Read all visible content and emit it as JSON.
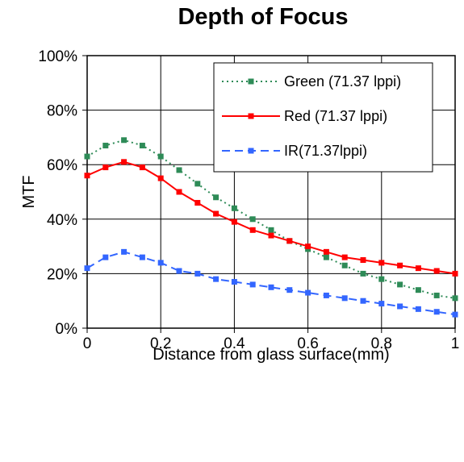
{
  "chart_data": {
    "type": "line",
    "title": "Depth of Focus",
    "xlabel": "Distance from glass surface(mm)",
    "ylabel": "MTF",
    "xlim": [
      0,
      1
    ],
    "ylim": [
      0,
      100
    ],
    "x_ticks": [
      "0",
      "0.2",
      "0.4",
      "0.6",
      "0.8",
      "1"
    ],
    "y_ticks": [
      "0%",
      "20%",
      "40%",
      "60%",
      "80%",
      "100%"
    ],
    "grid": true,
    "legend_position": "top-right",
    "x": [
      0,
      0.05,
      0.1,
      0.15,
      0.2,
      0.25,
      0.3,
      0.35,
      0.4,
      0.45,
      0.5,
      0.55,
      0.6,
      0.65,
      0.7,
      0.75,
      0.8,
      0.85,
      0.9,
      0.95,
      1.0
    ],
    "series": [
      {
        "name": "Green (71.37 lppi)",
        "color": "#2e8b57",
        "line_style": "dotted",
        "values": [
          63,
          67,
          69,
          67,
          63,
          58,
          53,
          48,
          44,
          40,
          36,
          32,
          29,
          26,
          23,
          20,
          18,
          16,
          14,
          12,
          11
        ]
      },
      {
        "name": "Red (71.37 lppi)",
        "color": "#ff0000",
        "line_style": "solid",
        "values": [
          56,
          59,
          61,
          59,
          55,
          50,
          46,
          42,
          39,
          36,
          34,
          32,
          30,
          28,
          26,
          25,
          24,
          23,
          22,
          21,
          20
        ]
      },
      {
        "name": "IR(71.37lppi)",
        "color": "#3366ff",
        "line_style": "dashed",
        "values": [
          22,
          26,
          28,
          26,
          24,
          21,
          20,
          18,
          17,
          16,
          15,
          14,
          13,
          12,
          11,
          10,
          9,
          8,
          7,
          6,
          5
        ]
      }
    ]
  }
}
